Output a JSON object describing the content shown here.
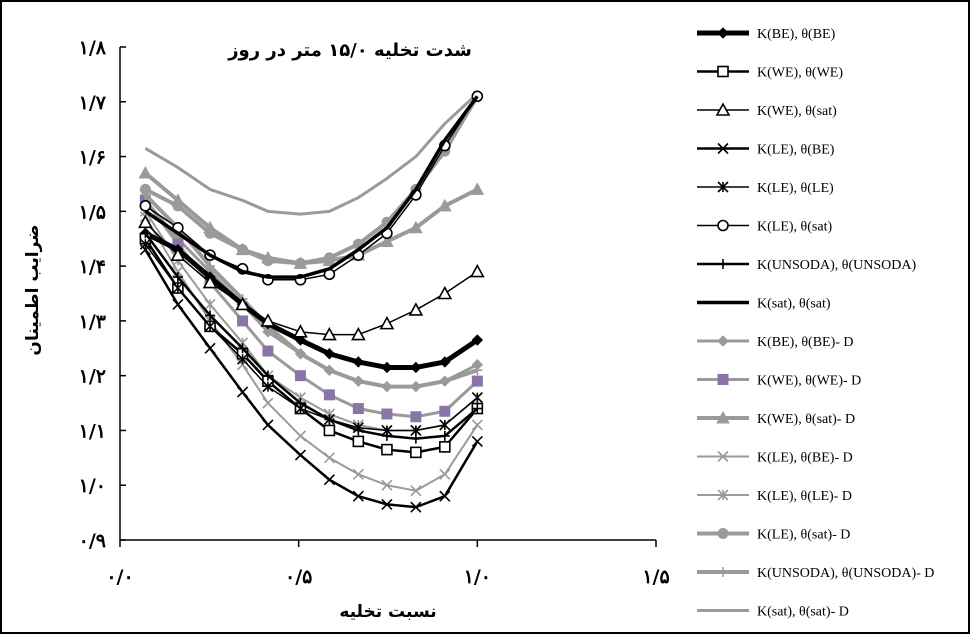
{
  "chart_data": {
    "type": "line",
    "title": "شدت تخلیه ۱۵/۰ متر در روز",
    "xlabel": "نسبت تخلیه",
    "ylabel": "ضرایب اطمینان",
    "xlim": [
      0,
      1.5
    ],
    "ylim": [
      0.9,
      1.8
    ],
    "x_ticks": [
      0,
      0.5,
      1.0,
      1.5
    ],
    "x_tick_labels": [
      "۰/۰",
      "۰/۵",
      "۱/۰",
      "۱/۵"
    ],
    "y_ticks": [
      0.9,
      1.0,
      1.1,
      1.2,
      1.3,
      1.4,
      1.5,
      1.6,
      1.7,
      1.8
    ],
    "y_tick_labels": [
      "۰/۹",
      "۱/۰",
      "۱/۱",
      "۱/۲",
      "۱/۳",
      "۱/۴",
      "۱/۵",
      "۱/۶",
      "۱/۷",
      "۱/۸"
    ],
    "grid": false,
    "legend_position": "right",
    "colors": {
      "black": "#000000",
      "gray": "#9a9a9a",
      "purple": "#8b75a8",
      "frame": "#000000"
    },
    "x": [
      0.071,
      0.162,
      0.252,
      0.343,
      0.414,
      0.505,
      0.586,
      0.667,
      0.747,
      0.828,
      0.909,
      1.0
    ],
    "series": [
      {
        "name": "K(BE),  θ(BE)",
        "color": "#000000",
        "width": 5,
        "marker": "diamond",
        "values": [
          1.46,
          1.43,
          1.38,
          1.33,
          1.295,
          1.265,
          1.24,
          1.225,
          1.215,
          1.215,
          1.225,
          1.265
        ]
      },
      {
        "name": "K(WE),  θ(WE)",
        "color": "#000000",
        "width": 2.5,
        "marker": "square-open",
        "values": [
          1.45,
          1.36,
          1.29,
          1.24,
          1.19,
          1.14,
          1.1,
          1.08,
          1.065,
          1.06,
          1.07,
          1.14
        ]
      },
      {
        "name": "K(WE),  θ(sat)",
        "color": "#000000",
        "width": 1.5,
        "marker": "triangle-open",
        "values": [
          1.48,
          1.42,
          1.37,
          1.33,
          1.3,
          1.28,
          1.275,
          1.275,
          1.295,
          1.32,
          1.35,
          1.39
        ]
      },
      {
        "name": "K(LE),  θ(BE)",
        "color": "#000000",
        "width": 2.5,
        "marker": "x",
        "values": [
          1.43,
          1.33,
          1.25,
          1.17,
          1.11,
          1.055,
          1.01,
          0.98,
          0.965,
          0.96,
          0.98,
          1.08
        ]
      },
      {
        "name": "K(LE),  θ(LE)",
        "color": "#000000",
        "width": 1.5,
        "marker": "asterisk",
        "values": [
          1.44,
          1.36,
          1.29,
          1.23,
          1.18,
          1.14,
          1.12,
          1.105,
          1.1,
          1.1,
          1.11,
          1.16
        ]
      },
      {
        "name": "K(LE),  θ(sat)",
        "color": "#000000",
        "width": 1.5,
        "marker": "circle-open",
        "values": [
          1.51,
          1.47,
          1.42,
          1.395,
          1.375,
          1.375,
          1.385,
          1.42,
          1.46,
          1.53,
          1.62,
          1.71
        ]
      },
      {
        "name": "K(UNSODA), θ(UNSODA)",
        "color": "#000000",
        "width": 2.5,
        "marker": "plus",
        "values": [
          1.46,
          1.38,
          1.31,
          1.25,
          1.2,
          1.15,
          1.12,
          1.1,
          1.09,
          1.085,
          1.09,
          1.14
        ]
      },
      {
        "name": "K(sat), θ(sat)",
        "color": "#000000",
        "width": 3.5,
        "marker": "none",
        "values": [
          1.5,
          1.46,
          1.42,
          1.39,
          1.38,
          1.38,
          1.395,
          1.43,
          1.47,
          1.54,
          1.63,
          1.71
        ]
      },
      {
        "name": "K(BE),  θ(BE)- D",
        "color": "#9a9a9a",
        "width": 3,
        "marker": "diamond",
        "values": [
          1.52,
          1.45,
          1.39,
          1.33,
          1.28,
          1.24,
          1.21,
          1.19,
          1.18,
          1.18,
          1.19,
          1.22
        ]
      },
      {
        "name": "K(WE),  θ(WE)- D",
        "color": "#9a9a9a",
        "width": 3,
        "marker": "square-purple",
        "values": [
          1.52,
          1.44,
          1.37,
          1.3,
          1.245,
          1.2,
          1.165,
          1.14,
          1.13,
          1.125,
          1.135,
          1.19
        ]
      },
      {
        "name": "K(WE),  θ(sat)- D",
        "color": "#9a9a9a",
        "width": 4,
        "marker": "triangle",
        "values": [
          1.57,
          1.52,
          1.47,
          1.43,
          1.415,
          1.405,
          1.41,
          1.42,
          1.445,
          1.47,
          1.51,
          1.54
        ]
      },
      {
        "name": "K(LE),  θ(BE)- D",
        "color": "#9a9a9a",
        "width": 2,
        "marker": "x",
        "values": [
          1.49,
          1.39,
          1.3,
          1.22,
          1.15,
          1.09,
          1.05,
          1.02,
          1.0,
          0.99,
          1.02,
          1.11
        ]
      },
      {
        "name": "K(LE),  θ(LE)- D",
        "color": "#9a9a9a",
        "width": 2,
        "marker": "asterisk",
        "values": [
          1.5,
          1.41,
          1.33,
          1.26,
          1.2,
          1.16,
          1.13,
          1.11,
          1.1,
          1.1,
          1.11,
          1.16
        ]
      },
      {
        "name": "K(LE),  θ(sat)- D",
        "color": "#9a9a9a",
        "width": 4,
        "marker": "circle",
        "values": [
          1.54,
          1.51,
          1.46,
          1.43,
          1.41,
          1.405,
          1.415,
          1.44,
          1.48,
          1.54,
          1.61,
          1.71
        ]
      },
      {
        "name": "K(UNSODA), θ(UNSODA)- D",
        "color": "#9a9a9a",
        "width": 4,
        "marker": "plus",
        "values": [
          1.53,
          1.47,
          1.4,
          1.34,
          1.29,
          1.24,
          1.21,
          1.19,
          1.18,
          1.18,
          1.19,
          1.21
        ]
      },
      {
        "name": "K(sat), θ(sat)- D",
        "color": "#9a9a9a",
        "width": 3,
        "marker": "none",
        "values": [
          1.615,
          1.58,
          1.54,
          1.52,
          1.5,
          1.495,
          1.5,
          1.525,
          1.56,
          1.6,
          1.66,
          1.715
        ]
      }
    ]
  }
}
